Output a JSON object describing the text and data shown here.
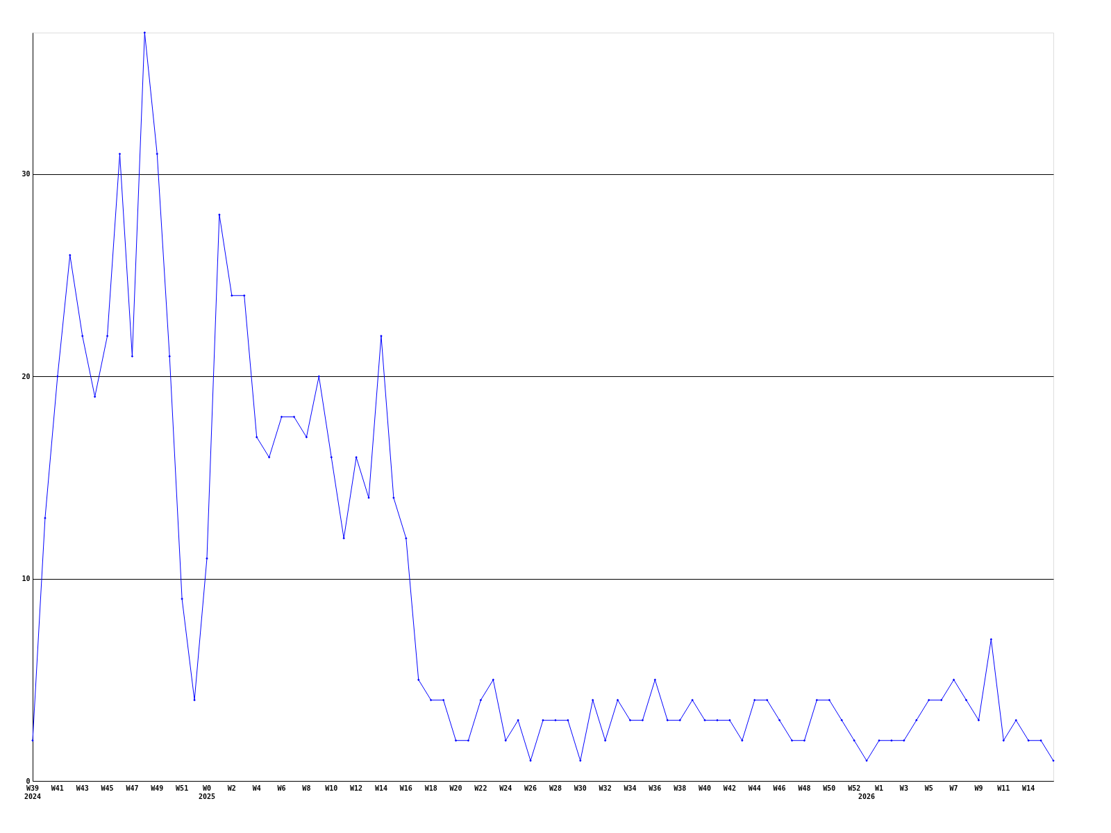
{
  "chart_data": {
    "type": "line",
    "categories": [
      "W39\n2024",
      null,
      "W41",
      null,
      "W43",
      null,
      "W45",
      null,
      "W47",
      null,
      "W49",
      null,
      "W51",
      null,
      "W0\n2025",
      null,
      "W2",
      null,
      "W4",
      null,
      "W6",
      null,
      "W8",
      null,
      "W10",
      null,
      "W12",
      null,
      "W14",
      null,
      "W16",
      null,
      "W18",
      null,
      "W20",
      null,
      "W22",
      null,
      "W24",
      null,
      "W26",
      null,
      "W28",
      null,
      "W30",
      null,
      "W32",
      null,
      "W34",
      null,
      "W36",
      null,
      "W38",
      null,
      "W40",
      null,
      "W42",
      null,
      "W44",
      null,
      "W46",
      null,
      "W48",
      null,
      "W50",
      null,
      "W52",
      "\n2026",
      "W1",
      null,
      "W3",
      null,
      "W5",
      null,
      "W7",
      null,
      "W9",
      null,
      "W11",
      null,
      "W14",
      null,
      null
    ],
    "series": [
      {
        "color": "#0000ff",
        "values": [
          2,
          13,
          20,
          26,
          22,
          19,
          22,
          31,
          21,
          37,
          31,
          21,
          9,
          4,
          11,
          28,
          24,
          24,
          17,
          16,
          18,
          18,
          17,
          20,
          16,
          12,
          16,
          14,
          22,
          14,
          12,
          5,
          4,
          4,
          2,
          2,
          4,
          5,
          2,
          3,
          1,
          3,
          3,
          3,
          1,
          4,
          2,
          4,
          3,
          3,
          5,
          3,
          3,
          4,
          3,
          3,
          3,
          2,
          4,
          4,
          3,
          2,
          2,
          4,
          4,
          3,
          2,
          1,
          2,
          2,
          2,
          3,
          4,
          4,
          5,
          4,
          3,
          7,
          2,
          3,
          2,
          2,
          1
        ]
      }
    ],
    "ylim": [
      0,
      37
    ],
    "yticks": [
      0,
      10,
      20,
      30
    ],
    "grid": "y",
    "marker": "diamond",
    "line_style": "solid"
  }
}
